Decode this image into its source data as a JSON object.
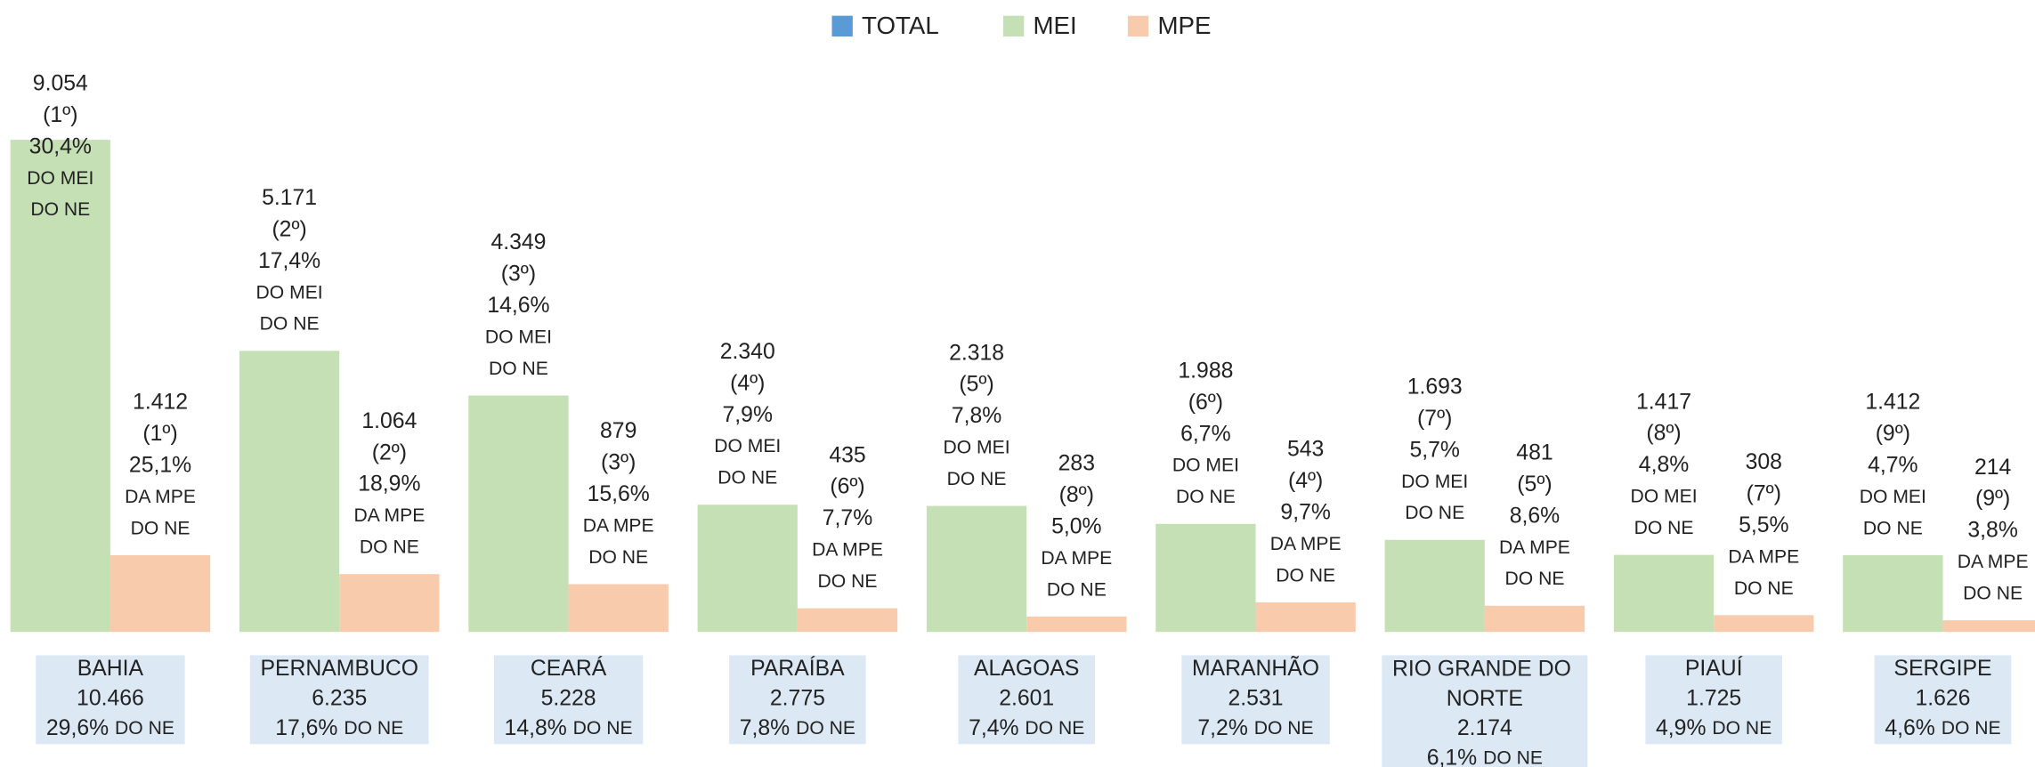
{
  "chart_data": {
    "type": "bar",
    "legend": "top",
    "ylim": [
      0,
      10000
    ],
    "categories": [
      "BAHIA",
      "PERNAMBUCO",
      "CEARÁ",
      "PARAÍBA",
      "ALAGOAS",
      "MARANHÃO",
      "RIO GRANDE DO NORTE",
      "PIAUÍ",
      "SERGIPE"
    ],
    "series": [
      {
        "name": "TOTAL",
        "color": "#5b9bd5",
        "values": [
          10466,
          6235,
          5228,
          2775,
          2601,
          2531,
          2174,
          1725,
          1626
        ],
        "value_labels": [
          "10.466",
          "6.235",
          "5.228",
          "2.775",
          "2.601",
          "2.531",
          "2.174",
          "1.725",
          "1.626"
        ],
        "shares": [
          "29,6%",
          "17,6%",
          "14,8%",
          "7,8%",
          "7,4%",
          "7,2%",
          "6,1%",
          "4,9%",
          "4,6%"
        ],
        "share_suffix": "DO NE"
      },
      {
        "name": "MEI",
        "color": "#c5e0b4",
        "values": [
          9054,
          5171,
          4349,
          2340,
          2318,
          1988,
          1693,
          1417,
          1412
        ],
        "value_labels": [
          "9.054",
          "5.171",
          "4.349",
          "2.340",
          "2.318",
          "1.988",
          "1.693",
          "1.417",
          "1.412"
        ],
        "ranks": [
          "(1º)",
          "(2º)",
          "(3º)",
          "(4º)",
          "(5º)",
          "(6º)",
          "(7º)",
          "(8º)",
          "(9º)"
        ],
        "shares": [
          "30,4%",
          "17,4%",
          "14,6%",
          "7,9%",
          "7,8%",
          "6,7%",
          "5,7%",
          "4,8%",
          "4,7%"
        ],
        "share_suffix": [
          "DO MEI",
          "DO NE"
        ]
      },
      {
        "name": "MPE",
        "color": "#f8cbad",
        "values": [
          1412,
          1064,
          879,
          435,
          283,
          543,
          481,
          308,
          214
        ],
        "value_labels": [
          "1.412",
          "1.064",
          "879",
          "435",
          "283",
          "543",
          "481",
          "308",
          "214"
        ],
        "ranks": [
          "(1º)",
          "(2º)",
          "(3º)",
          "(6º)",
          "(8º)",
          "(4º)",
          "(5º)",
          "(7º)",
          "(9º)"
        ],
        "shares": [
          "25,1%",
          "18,9%",
          "15,6%",
          "7,7%",
          "5,0%",
          "9,7%",
          "8,6%",
          "5,5%",
          "3,8%"
        ],
        "share_suffix": [
          "DA MPE",
          "DO NE"
        ]
      }
    ]
  }
}
